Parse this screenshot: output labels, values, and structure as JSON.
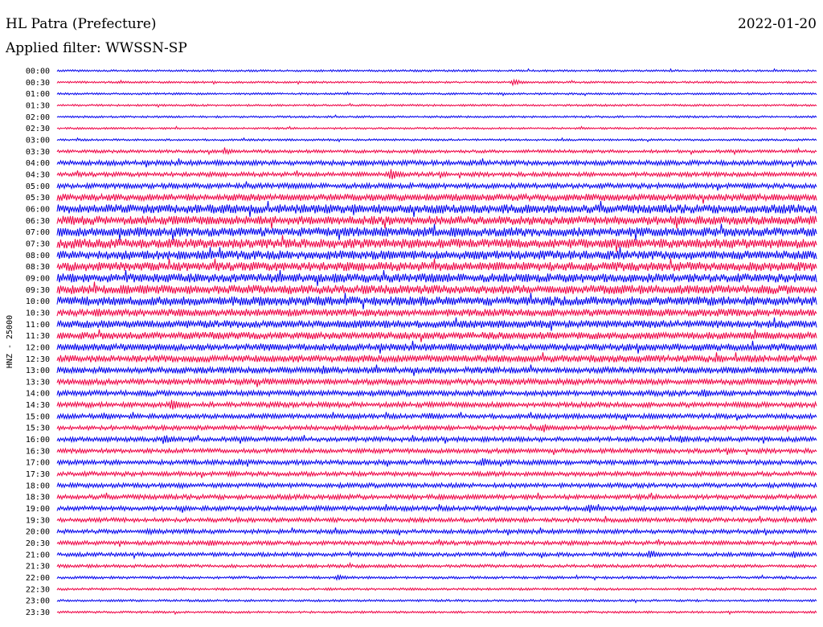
{
  "header": {
    "station": "HL Patra (Prefecture)",
    "date": "2022-01-20",
    "filter_text": "Applied filter: WWSSN-SP"
  },
  "chart_data": {
    "type": "line",
    "title": "HL Patra (Prefecture)",
    "ylabel": "HNZ - 25000",
    "colors": [
      "#0000ee",
      "#ee0044"
    ],
    "grid": false,
    "rows": [
      "00:00",
      "00:30",
      "01:00",
      "01:30",
      "02:00",
      "02:30",
      "03:00",
      "03:30",
      "04:00",
      "04:30",
      "05:00",
      "05:30",
      "06:00",
      "06:30",
      "07:00",
      "07:30",
      "08:00",
      "08:30",
      "09:00",
      "09:30",
      "10:00",
      "10:30",
      "11:00",
      "11:30",
      "12:00",
      "12:30",
      "13:00",
      "13:30",
      "14:00",
      "14:30",
      "15:00",
      "15:30",
      "16:00",
      "16:30",
      "17:00",
      "17:30",
      "18:00",
      "18:30",
      "19:00",
      "19:30",
      "20:00",
      "20:30",
      "21:00",
      "21:30",
      "22:00",
      "22:30",
      "23:00",
      "23:30"
    ],
    "noise_level": [
      1,
      1,
      1,
      1,
      1,
      1,
      1,
      1.6,
      2.5,
      2.2,
      2.6,
      3.5,
      4.5,
      4.5,
      4.6,
      4.8,
      4.5,
      4.5,
      4.5,
      4.5,
      4.6,
      3.8,
      3.8,
      3.6,
      3.6,
      3.6,
      3.2,
      3.0,
      2.8,
      2.6,
      2.4,
      2.3,
      2.4,
      2.3,
      2.4,
      2.3,
      2.3,
      2.4,
      2.4,
      2.2,
      2.2,
      2.1,
      2,
      1.6,
      1.3,
      1.2,
      1.1,
      1.1
    ],
    "events": [
      {
        "row": 1,
        "x": 0.6,
        "amp": 4
      },
      {
        "row": 7,
        "x": 0.22,
        "amp": 5
      },
      {
        "row": 7,
        "x": 0.47,
        "amp": 3
      },
      {
        "row": 8,
        "x": 0.4,
        "amp": 5
      },
      {
        "row": 9,
        "x": 0.44,
        "amp": 8
      },
      {
        "row": 12,
        "x": 0.39,
        "amp": 8
      },
      {
        "row": 12,
        "x": 0.5,
        "amp": 7
      },
      {
        "row": 14,
        "x": 0.52,
        "amp": 8
      },
      {
        "row": 18,
        "x": 0.37,
        "amp": 6
      },
      {
        "row": 19,
        "x": 0.11,
        "amp": 7
      },
      {
        "row": 20,
        "x": 0.27,
        "amp": 6
      },
      {
        "row": 22,
        "x": 0.4,
        "amp": 7
      },
      {
        "row": 24,
        "x": 0.28,
        "amp": 6
      },
      {
        "row": 26,
        "x": 0.35,
        "amp": 6
      },
      {
        "row": 28,
        "x": 0.85,
        "amp": 6
      },
      {
        "row": 29,
        "x": 0.15,
        "amp": 7
      },
      {
        "row": 29,
        "x": 0.58,
        "amp": 5
      },
      {
        "row": 30,
        "x": 0.06,
        "amp": 6
      },
      {
        "row": 30,
        "x": 0.49,
        "amp": 5
      },
      {
        "row": 30,
        "x": 0.78,
        "amp": 5
      },
      {
        "row": 31,
        "x": 0.64,
        "amp": 6
      },
      {
        "row": 32,
        "x": 0.14,
        "amp": 7
      },
      {
        "row": 32,
        "x": 0.82,
        "amp": 6
      },
      {
        "row": 34,
        "x": 0.24,
        "amp": 5
      },
      {
        "row": 34,
        "x": 0.56,
        "amp": 6
      },
      {
        "row": 36,
        "x": 0.16,
        "amp": 5
      },
      {
        "row": 38,
        "x": 0.7,
        "amp": 6
      },
      {
        "row": 40,
        "x": 0.12,
        "amp": 5
      },
      {
        "row": 41,
        "x": 0.2,
        "amp": 5
      },
      {
        "row": 42,
        "x": 0.78,
        "amp": 6
      },
      {
        "row": 42,
        "x": 0.97,
        "amp": 5
      },
      {
        "row": 44,
        "x": 0.37,
        "amp": 4
      }
    ]
  }
}
